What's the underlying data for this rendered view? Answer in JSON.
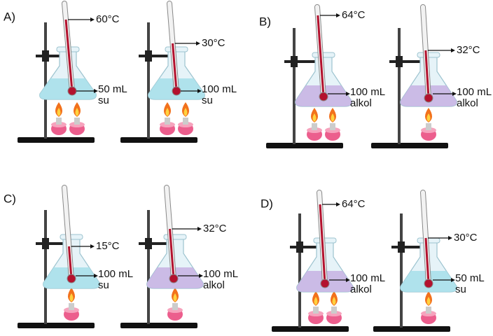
{
  "panels": [
    {
      "label": "A)",
      "setups": [
        {
          "temperature": "60°C",
          "volume": "50 mL",
          "liquid": "su"
        },
        {
          "temperature": "30°C",
          "volume": "100 mL",
          "liquid": "su"
        }
      ]
    },
    {
      "label": "B)",
      "setups": [
        {
          "temperature": "64°C",
          "volume": "100 mL",
          "liquid": "alkol"
        },
        {
          "temperature": "32°C",
          "volume": "100 mL",
          "liquid": "alkol"
        }
      ]
    },
    {
      "label": "C)",
      "setups": [
        {
          "temperature": "15°C",
          "volume": "100 mL",
          "liquid": "su"
        },
        {
          "temperature": "32°C",
          "volume": "100 mL",
          "liquid": "alkol"
        }
      ]
    },
    {
      "label": "D)",
      "setups": [
        {
          "temperature": "64°C",
          "volume": "100 mL",
          "liquid": "alkol"
        },
        {
          "temperature": "30°C",
          "volume": "50 mL",
          "liquid": "su"
        }
      ]
    }
  ]
}
